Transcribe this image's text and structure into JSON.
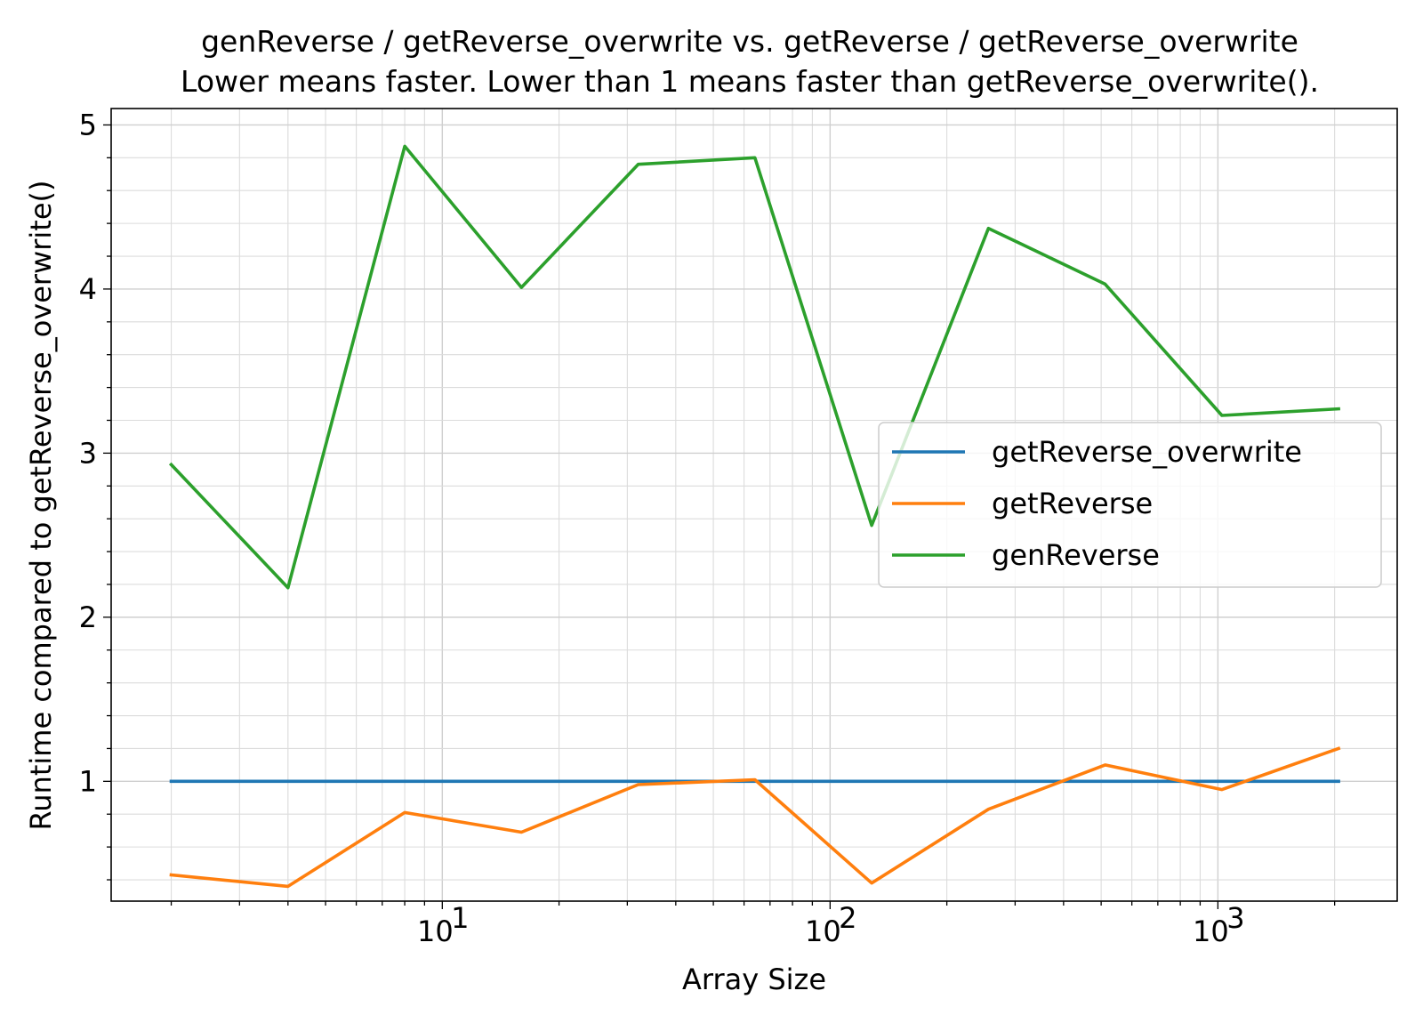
{
  "chart_data": {
    "type": "line",
    "title": "genReverse / getReverse_overwrite vs. getReverse / getReverse_overwrite",
    "subtitle": "Lower means faster. Lower than 1 means faster than getReverse_overwrite().",
    "xlabel": "Array Size",
    "ylabel": "Runtime compared to getReverse_overwrite()",
    "xscale": "log",
    "xlim": [
      1.4,
      2900
    ],
    "ylim": [
      0.27,
      5.1
    ],
    "x_ticks": [
      {
        "value": 10,
        "base": "10",
        "exp": "1"
      },
      {
        "value": 100,
        "base": "10",
        "exp": "2"
      },
      {
        "value": 1000,
        "base": "10",
        "exp": "3"
      }
    ],
    "y_ticks": [
      {
        "value": 1,
        "label": "1"
      },
      {
        "value": 2,
        "label": "2"
      },
      {
        "value": 3,
        "label": "3"
      },
      {
        "value": 4,
        "label": "4"
      },
      {
        "value": 5,
        "label": "5"
      }
    ],
    "grid": true,
    "legend_position": "center-right",
    "x": [
      2,
      4,
      8,
      16,
      32,
      64,
      128,
      256,
      512,
      1024,
      2048
    ],
    "series": [
      {
        "name": "getReverse_overwrite",
        "color": "#1f77b4",
        "values": [
          1,
          1,
          1,
          1,
          1,
          1,
          1,
          1,
          1,
          1,
          1
        ]
      },
      {
        "name": "getReverse",
        "color": "#ff7f0e",
        "values": [
          0.43,
          0.36,
          0.81,
          0.69,
          0.98,
          1.01,
          0.38,
          0.83,
          1.1,
          0.95,
          1.2
        ]
      },
      {
        "name": "genReverse",
        "color": "#2ca02c",
        "values": [
          2.93,
          2.18,
          4.87,
          4.01,
          4.76,
          4.8,
          2.56,
          4.37,
          4.03,
          3.23,
          3.27
        ]
      }
    ]
  }
}
